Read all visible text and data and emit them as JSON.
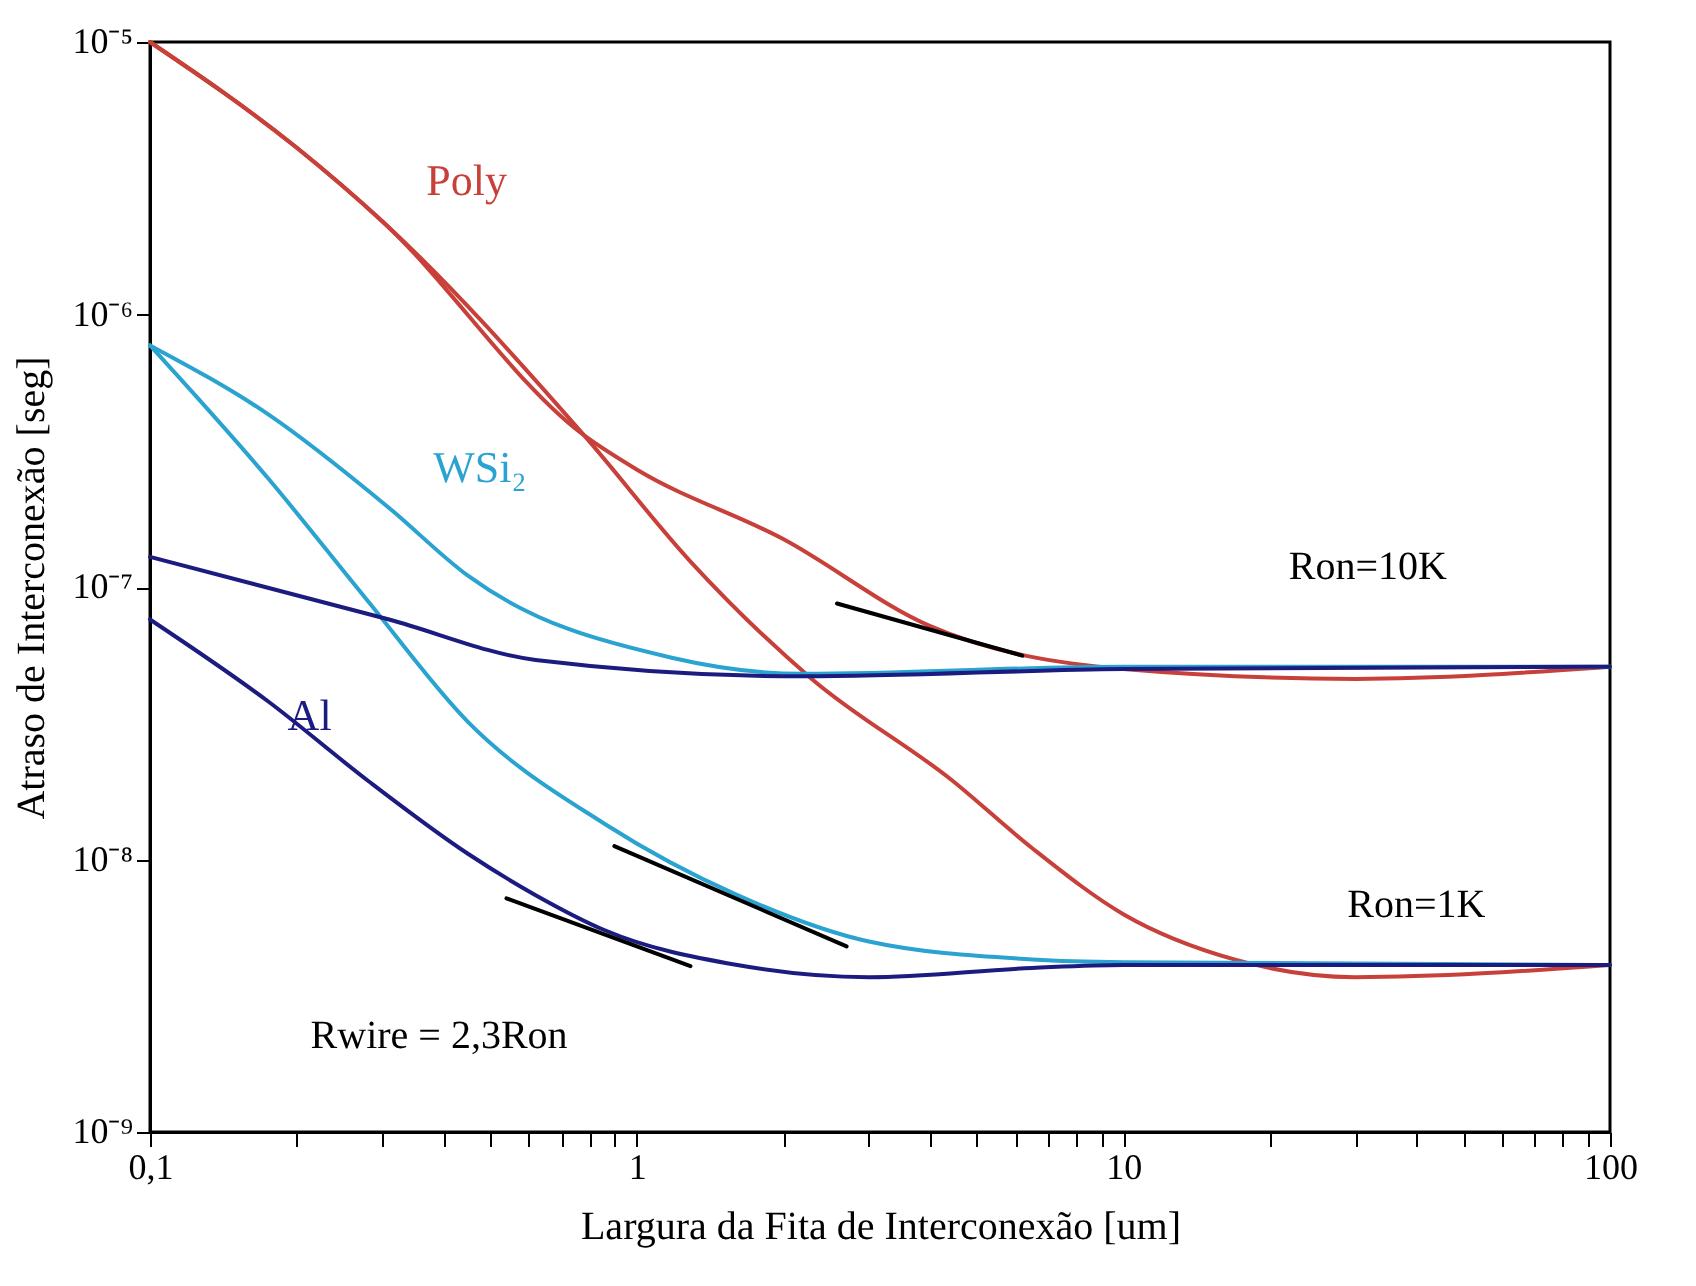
{
  "chart_data": {
    "type": "line",
    "xlabel": "Largura da Fita de Interconexão [um]",
    "ylabel": "Atraso de Interconexão [seg]",
    "log": "xy",
    "xlim": [
      0.1,
      100
    ],
    "ylim": [
      1e-09,
      1e-05
    ],
    "xticks": [
      {
        "value": 0.1,
        "label": "0,1"
      },
      {
        "value": 0.2,
        "label": null
      },
      {
        "value": 0.3,
        "label": null
      },
      {
        "value": 0.4,
        "label": null
      },
      {
        "value": 0.5,
        "label": null
      },
      {
        "value": 0.6,
        "label": null
      },
      {
        "value": 0.7,
        "label": null
      },
      {
        "value": 0.8,
        "label": null
      },
      {
        "value": 0.9,
        "label": null
      },
      1,
      {
        "value": 2,
        "label": null
      },
      {
        "value": 3,
        "label": null
      },
      {
        "value": 4,
        "label": null
      },
      {
        "value": 5,
        "label": null
      },
      {
        "value": 6,
        "label": null
      },
      {
        "value": 7,
        "label": null
      },
      {
        "value": 8,
        "label": null
      },
      {
        "value": 9,
        "label": null
      },
      10,
      {
        "value": 20,
        "label": null
      },
      {
        "value": 30,
        "label": null
      },
      {
        "value": 40,
        "label": null
      },
      {
        "value": 50,
        "label": null
      },
      {
        "value": 60,
        "label": null
      },
      {
        "value": 70,
        "label": null
      },
      {
        "value": 80,
        "label": null
      },
      {
        "value": 90,
        "label": null
      },
      100
    ],
    "yticks": [
      {
        "value": 1e-09,
        "label": "10⁻⁹"
      },
      {
        "value": 1e-08,
        "label": "10⁻⁸"
      },
      {
        "value": 1e-07,
        "label": "10⁻⁷"
      },
      {
        "value": 1e-06,
        "label": "10⁻⁶"
      },
      {
        "value": 1e-05,
        "label": "10⁻⁵"
      }
    ],
    "grid": false,
    "line_style": "solid",
    "marker": "none",
    "series": [
      {
        "name": "Poly",
        "color": "#c8403a",
        "x": [
          0.1,
          0.2,
          0.3,
          0.78,
          1,
          2,
          4,
          10,
          30,
          100
        ],
        "values": [
          1e-05,
          4.1e-06,
          2.2e-06,
          3.6e-07,
          2.7e-07,
          1.5e-07,
          7.2e-08,
          5e-08,
          4.6e-08,
          5.1e-08
        ]
      },
      {
        "color": "#c8403a",
        "x": [
          0.1,
          0.2,
          0.3,
          0.78,
          1.29,
          2.29,
          4.45,
          6.5,
          10,
          16.9,
          29.9,
          100
        ],
        "values": [
          1e-05,
          4.1e-06,
          2.2e-06,
          3.6e-07,
          1.24e-07,
          4.6e-08,
          1.95e-08,
          1.1e-08,
          6.3e-09,
          4.3e-09,
          3.7e-09,
          4.1e-09
        ]
      },
      {
        "name": "WSi₂",
        "color": "#2aa3d0",
        "x": [
          0.1,
          0.175,
          0.31,
          0.45,
          1.18,
          2.2,
          10,
          100
        ],
        "values": [
          7.7e-07,
          4.3e-07,
          1.95e-07,
          1.1e-07,
          5.5e-08,
          4.8e-08,
          5.1e-08,
          5.1e-08
        ]
      },
      {
        "color": "#2aa3d0",
        "x": [
          0.1,
          0.175,
          0.28,
          0.45,
          0.86,
          1.61,
          3.0,
          6.5,
          10,
          100
        ],
        "values": [
          7.7e-07,
          2.5e-07,
          8.9e-08,
          3.2e-08,
          1.35e-08,
          7.4e-09,
          5e-09,
          4.3e-09,
          4.2e-09,
          4.1e-09
        ]
      },
      {
        "color": "#1c1c80",
        "x": [
          0.1,
          0.31,
          0.62,
          2.2,
          10,
          100
        ],
        "values": [
          1.29e-07,
          7.6e-08,
          5.4e-08,
          4.7e-08,
          5e-08,
          5.1e-08
        ]
      },
      {
        "name": "Al",
        "color": "#1c1c80",
        "x": [
          0.1,
          0.175,
          0.28,
          0.45,
          0.62,
          0.86,
          1.61,
          3.0,
          6.5,
          10,
          100
        ],
        "values": [
          7.6e-08,
          3.8e-08,
          1.95e-08,
          1.05e-08,
          7.4e-09,
          5.5e-09,
          4.1e-09,
          3.7e-09,
          4e-09,
          4.1e-09,
          4.1e-09
        ]
      },
      {
        "color": "#000000",
        "x": [
          0.54,
          1.29
        ],
        "values": [
          7.2e-09,
          4.06e-09
        ]
      },
      {
        "color": "#000000",
        "x": [
          0.9,
          2.7
        ],
        "values": [
          1.12e-08,
          4.8e-09
        ]
      },
      {
        "color": "#000000",
        "x": [
          2.58,
          6.2
        ],
        "values": [
          8.7e-08,
          5.6e-08
        ]
      }
    ],
    "annotations": [
      "Ron=10K",
      "Ron=1K",
      "Rwire = 2,3Ron"
    ]
  }
}
